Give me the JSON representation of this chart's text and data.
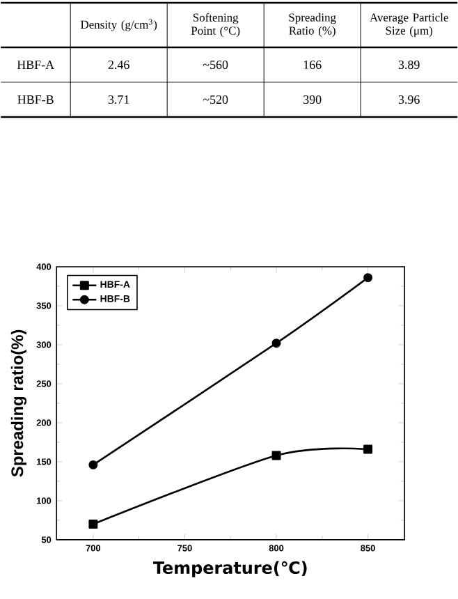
{
  "chart_data": [
    {
      "type": "other",
      "categories": [
        "Density (g/cm$^{3}$)",
        "Softening Point (°C)",
        "Spreading Ratio (%)",
        "Average Particle Size (μm)"
      ],
      "y_categories": [
        "HBF-A",
        "HBF-B"
      ],
      "cell_labels": [
        [
          "2.46",
          "~560",
          "166",
          "3.89"
        ],
        [
          "3.71",
          "~520",
          "390",
          "3.96"
        ]
      ]
    },
    {
      "type": "line",
      "xlabel": "Temperature(℃)",
      "ylabel": "Spreading ratio(%)",
      "x": [
        700,
        800,
        850
      ],
      "series": [
        {
          "name": "HBF-A",
          "color": "#000000",
          "marker": "square",
          "values": [
            70,
            158,
            166
          ]
        },
        {
          "name": "HBF-B",
          "color": "#000000",
          "marker": "circle",
          "values": [
            146,
            302,
            386
          ]
        }
      ],
      "xlim": [
        680,
        870
      ],
      "ylim": [
        50,
        400
      ],
      "xticks": [
        700,
        750,
        800,
        850
      ],
      "yticks": [
        50,
        100,
        150,
        200,
        250,
        300,
        350,
        400
      ],
      "legend": "top left",
      "line_style": "solid",
      "grid": false
    }
  ]
}
